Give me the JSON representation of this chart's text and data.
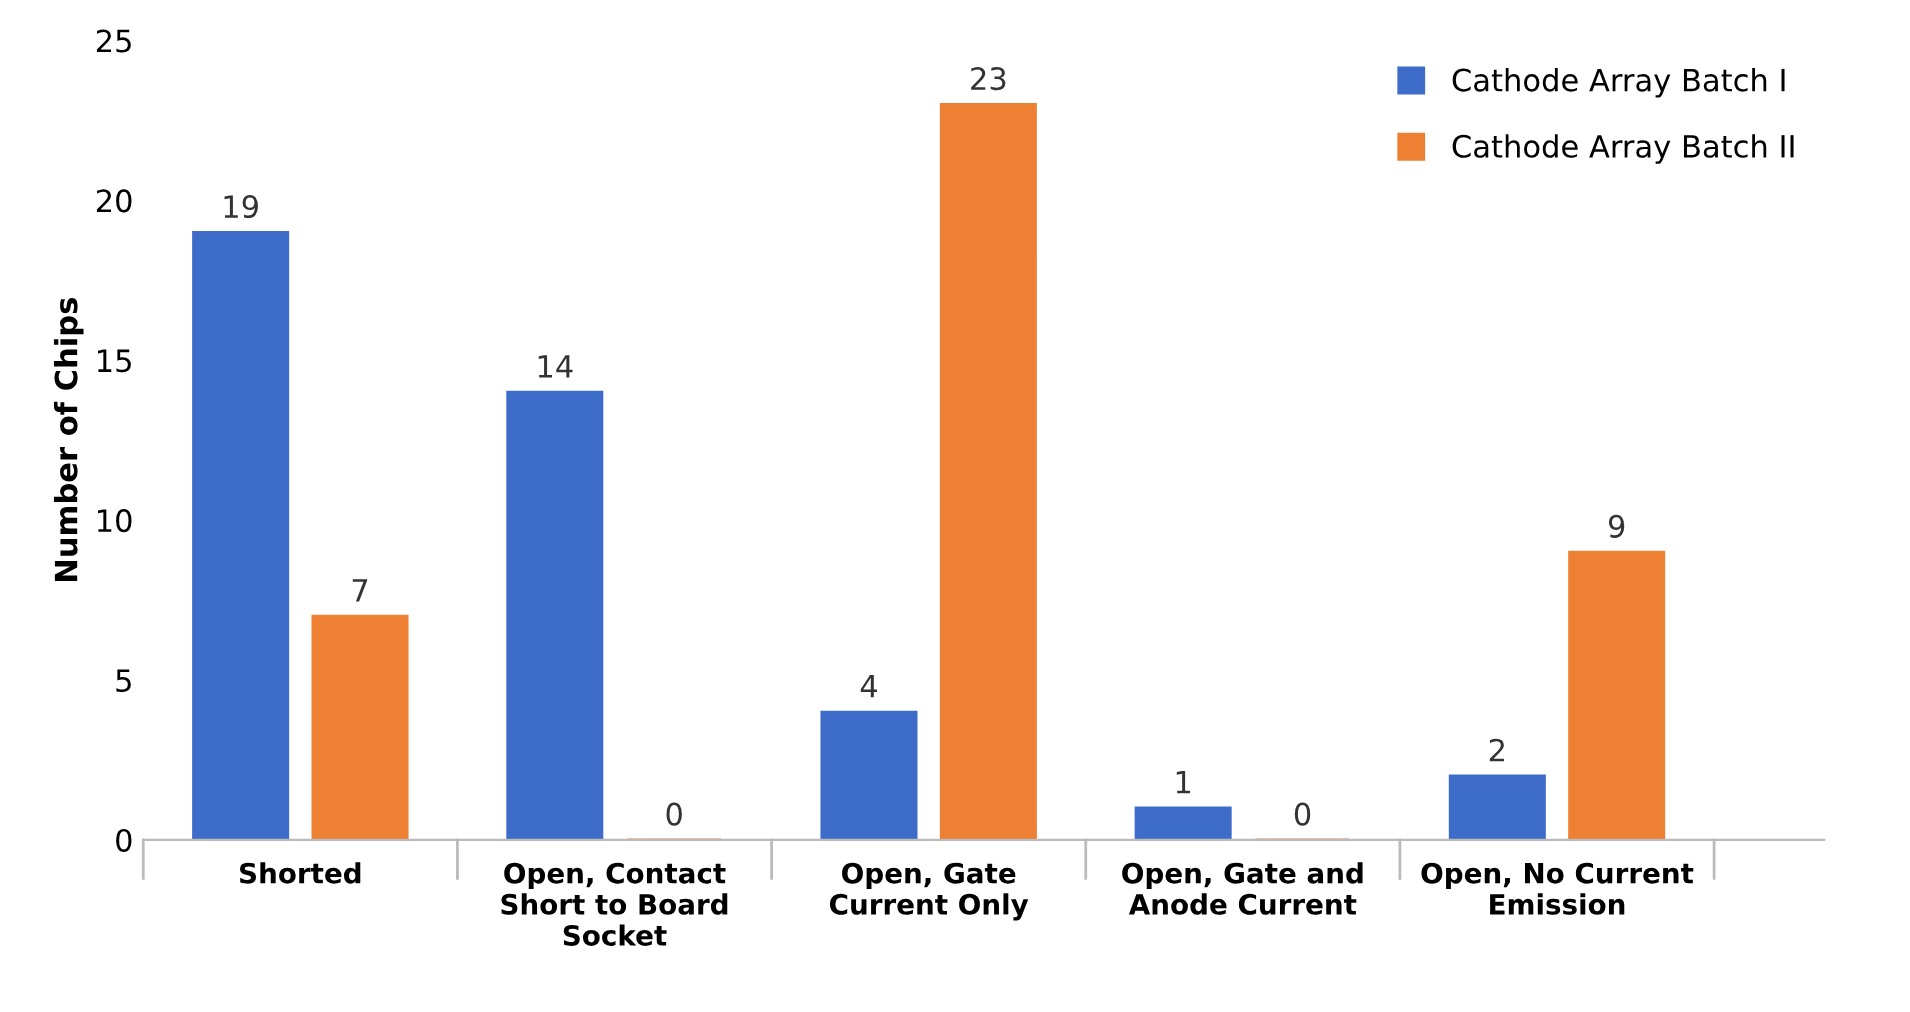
{
  "chart_data": {
    "type": "bar",
    "ylabel": "Number of Chips",
    "categories": [
      "Shorted",
      "Open, Contact\nShort to Board\nSocket",
      "Open, Gate\nCurrent Only",
      "Open, Gate and\nAnode Current",
      "Open, No Current\nEmission"
    ],
    "series": [
      {
        "name": "Cathode Array Batch I",
        "color": "#3d6cc9",
        "values": [
          19,
          14,
          4,
          1,
          2
        ]
      },
      {
        "name": "Cathode Array Batch II",
        "color": "#ee8033",
        "values": [
          7,
          0,
          23,
          0,
          9
        ]
      }
    ],
    "ylim": [
      0,
      25
    ],
    "yticks": [
      0,
      5,
      10,
      15,
      20,
      25
    ],
    "data_labels": true,
    "grid": false,
    "legend": "top right"
  }
}
